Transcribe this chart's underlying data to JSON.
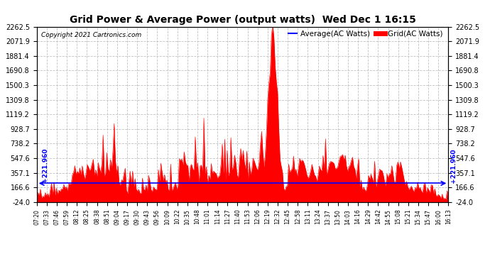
{
  "title": "Grid Power & Average Power (output watts)  Wed Dec 1 16:15",
  "copyright": "Copyright 2021 Cartronics.com",
  "legend_avg": "Average(AC Watts)",
  "legend_grid": "Grid(AC Watts)",
  "avg_value": 221.96,
  "avg_label": "+221.960",
  "ylim": [
    -24.0,
    2262.5
  ],
  "yticks": [
    -24.0,
    166.6,
    357.1,
    547.6,
    738.2,
    928.7,
    1119.2,
    1309.8,
    1500.3,
    1690.8,
    1881.4,
    2071.9,
    2262.5
  ],
  "background_color": "#ffffff",
  "grid_color": "#bbbbbb",
  "fill_color": "#ff0000",
  "line_color": "#ff0000",
  "avg_line_color": "#0000ff",
  "title_color": "#000000",
  "copyright_color": "#000000",
  "xtick_labels": [
    "07:20",
    "07:33",
    "07:46",
    "07:59",
    "08:12",
    "08:25",
    "08:38",
    "08:51",
    "09:04",
    "09:17",
    "09:30",
    "09:43",
    "09:56",
    "10:09",
    "10:22",
    "10:35",
    "10:48",
    "11:01",
    "11:14",
    "11:27",
    "11:40",
    "11:53",
    "12:06",
    "12:19",
    "12:32",
    "12:45",
    "12:58",
    "13:11",
    "13:24",
    "13:37",
    "13:50",
    "14:03",
    "14:16",
    "14:29",
    "14:42",
    "14:55",
    "15:08",
    "15:21",
    "15:34",
    "15:47",
    "16:00",
    "16:13"
  ]
}
